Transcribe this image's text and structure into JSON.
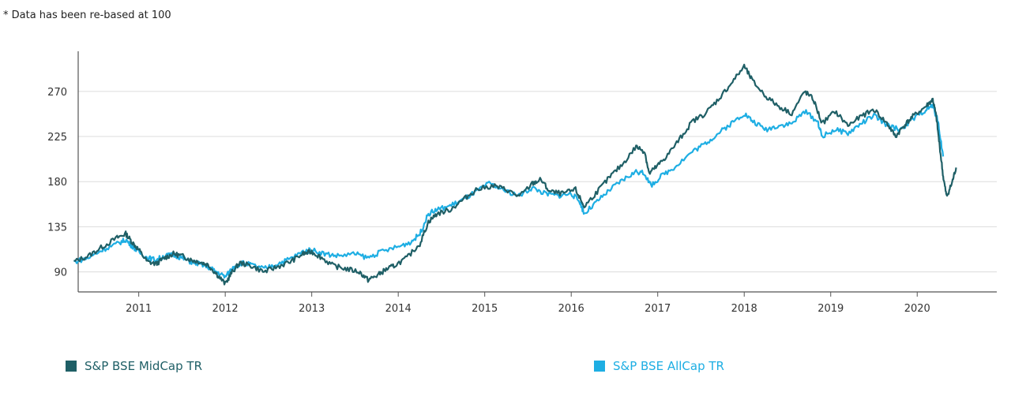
{
  "note": "* Data has been re-based at 100",
  "colors": {
    "midcap": "#1f5f66",
    "allcap": "#1eaee3",
    "grid": "#dcdcdc",
    "axis": "#555555"
  },
  "chart_data": {
    "type": "line",
    "title": "",
    "xlabel": "",
    "ylabel": "",
    "xlim": [
      2010.3,
      2020.92
    ],
    "ylim": [
      70,
      310
    ],
    "x_ticks": [
      2011,
      2012,
      2013,
      2014,
      2015,
      2016,
      2017,
      2018,
      2019,
      2020
    ],
    "x_tick_labels": [
      "2011",
      "2012",
      "2013",
      "2014",
      "2015",
      "2016",
      "2017",
      "2018",
      "2019",
      "2020"
    ],
    "y_ticks": [
      90,
      135,
      180,
      225,
      270
    ],
    "y_tick_labels": [
      "90",
      "135",
      "180",
      "225",
      "270"
    ],
    "grid": "horizontal",
    "legend_position": "bottom",
    "series": [
      {
        "name": "S&P BSE MidCap TR",
        "color": "#1f5f66",
        "points": [
          [
            2010.25,
            100
          ],
          [
            2010.42,
            106
          ],
          [
            2010.58,
            115
          ],
          [
            2010.75,
            124
          ],
          [
            2010.85,
            128
          ],
          [
            2010.92,
            120
          ],
          [
            2011.0,
            112
          ],
          [
            2011.1,
            100
          ],
          [
            2011.2,
            98
          ],
          [
            2011.3,
            104
          ],
          [
            2011.4,
            108
          ],
          [
            2011.5,
            106
          ],
          [
            2011.6,
            102
          ],
          [
            2011.7,
            100
          ],
          [
            2011.8,
            97
          ],
          [
            2011.9,
            88
          ],
          [
            2012.0,
            78
          ],
          [
            2012.08,
            90
          ],
          [
            2012.17,
            99
          ],
          [
            2012.3,
            96
          ],
          [
            2012.45,
            90
          ],
          [
            2012.6,
            95
          ],
          [
            2012.75,
            100
          ],
          [
            2012.9,
            108
          ],
          [
            2013.0,
            110
          ],
          [
            2013.1,
            105
          ],
          [
            2013.25,
            96
          ],
          [
            2013.4,
            93
          ],
          [
            2013.55,
            90
          ],
          [
            2013.65,
            82
          ],
          [
            2013.75,
            86
          ],
          [
            2013.85,
            92
          ],
          [
            2013.95,
            96
          ],
          [
            2014.1,
            104
          ],
          [
            2014.25,
            118
          ],
          [
            2014.35,
            140
          ],
          [
            2014.45,
            148
          ],
          [
            2014.6,
            152
          ],
          [
            2014.75,
            162
          ],
          [
            2014.9,
            172
          ],
          [
            2015.1,
            176
          ],
          [
            2015.25,
            172
          ],
          [
            2015.4,
            165
          ],
          [
            2015.55,
            178
          ],
          [
            2015.65,
            182
          ],
          [
            2015.75,
            170
          ],
          [
            2015.9,
            168
          ],
          [
            2016.05,
            172
          ],
          [
            2016.15,
            155
          ],
          [
            2016.3,
            170
          ],
          [
            2016.45,
            185
          ],
          [
            2016.6,
            198
          ],
          [
            2016.75,
            215
          ],
          [
            2016.85,
            210
          ],
          [
            2016.9,
            188
          ],
          [
            2017.0,
            196
          ],
          [
            2017.1,
            205
          ],
          [
            2017.25,
            222
          ],
          [
            2017.4,
            240
          ],
          [
            2017.55,
            248
          ],
          [
            2017.7,
            262
          ],
          [
            2017.85,
            278
          ],
          [
            2018.0,
            295
          ],
          [
            2018.1,
            280
          ],
          [
            2018.25,
            265
          ],
          [
            2018.4,
            255
          ],
          [
            2018.55,
            248
          ],
          [
            2018.7,
            270
          ],
          [
            2018.8,
            262
          ],
          [
            2018.9,
            238
          ],
          [
            2019.05,
            250
          ],
          [
            2019.2,
            236
          ],
          [
            2019.35,
            245
          ],
          [
            2019.5,
            252
          ],
          [
            2019.65,
            238
          ],
          [
            2019.75,
            225
          ],
          [
            2019.85,
            236
          ],
          [
            2019.95,
            245
          ],
          [
            2020.1,
            255
          ],
          [
            2020.18,
            262
          ],
          [
            2020.22,
            245
          ],
          [
            2020.26,
            215
          ],
          [
            2020.3,
            185
          ],
          [
            2020.34,
            165
          ],
          [
            2020.4,
            178
          ],
          [
            2020.45,
            194
          ]
        ]
      },
      {
        "name": "S&P BSE AllCap TR",
        "color": "#1eaee3",
        "points": [
          [
            2010.25,
            100
          ],
          [
            2010.42,
            104
          ],
          [
            2010.58,
            112
          ],
          [
            2010.75,
            118
          ],
          [
            2010.85,
            122
          ],
          [
            2010.92,
            116
          ],
          [
            2011.0,
            110
          ],
          [
            2011.1,
            104
          ],
          [
            2011.2,
            102
          ],
          [
            2011.3,
            106
          ],
          [
            2011.4,
            107
          ],
          [
            2011.5,
            104
          ],
          [
            2011.6,
            100
          ],
          [
            2011.7,
            98
          ],
          [
            2011.8,
            95
          ],
          [
            2011.9,
            90
          ],
          [
            2012.0,
            85
          ],
          [
            2012.1,
            95
          ],
          [
            2012.2,
            99
          ],
          [
            2012.3,
            97
          ],
          [
            2012.45,
            93
          ],
          [
            2012.6,
            98
          ],
          [
            2012.75,
            103
          ],
          [
            2012.9,
            110
          ],
          [
            2013.0,
            112
          ],
          [
            2013.15,
            108
          ],
          [
            2013.3,
            106
          ],
          [
            2013.5,
            108
          ],
          [
            2013.65,
            104
          ],
          [
            2013.8,
            110
          ],
          [
            2014.0,
            115
          ],
          [
            2014.15,
            120
          ],
          [
            2014.25,
            128
          ],
          [
            2014.35,
            148
          ],
          [
            2014.45,
            152
          ],
          [
            2014.6,
            156
          ],
          [
            2014.75,
            162
          ],
          [
            2014.9,
            170
          ],
          [
            2015.05,
            178
          ],
          [
            2015.2,
            172
          ],
          [
            2015.4,
            166
          ],
          [
            2015.55,
            174
          ],
          [
            2015.7,
            168
          ],
          [
            2015.85,
            166
          ],
          [
            2016.0,
            168
          ],
          [
            2016.1,
            160
          ],
          [
            2016.15,
            148
          ],
          [
            2016.3,
            160
          ],
          [
            2016.45,
            172
          ],
          [
            2016.6,
            182
          ],
          [
            2016.75,
            190
          ],
          [
            2016.85,
            188
          ],
          [
            2016.92,
            176
          ],
          [
            2017.05,
            186
          ],
          [
            2017.2,
            195
          ],
          [
            2017.4,
            210
          ],
          [
            2017.55,
            218
          ],
          [
            2017.7,
            228
          ],
          [
            2017.85,
            238
          ],
          [
            2018.0,
            248
          ],
          [
            2018.1,
            240
          ],
          [
            2018.25,
            232
          ],
          [
            2018.4,
            236
          ],
          [
            2018.55,
            238
          ],
          [
            2018.7,
            250
          ],
          [
            2018.85,
            240
          ],
          [
            2018.9,
            225
          ],
          [
            2019.05,
            232
          ],
          [
            2019.2,
            228
          ],
          [
            2019.35,
            238
          ],
          [
            2019.5,
            246
          ],
          [
            2019.65,
            236
          ],
          [
            2019.8,
            232
          ],
          [
            2019.95,
            242
          ],
          [
            2020.1,
            252
          ],
          [
            2020.18,
            256
          ],
          [
            2020.24,
            240
          ],
          [
            2020.3,
            205
          ]
        ]
      }
    ]
  }
}
